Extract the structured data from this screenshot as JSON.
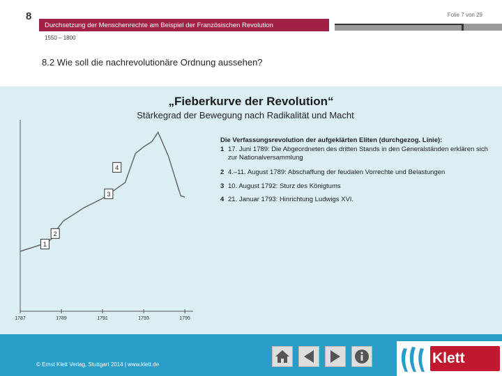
{
  "header": {
    "chapter_number": "8",
    "slide_counter": "Folie 7 von 29",
    "title": "Durchsetzung der Menschenrechte am Beispiel der Französischen Revolution",
    "period": "1550 – 1800",
    "section_heading": "8.2  Wie soll die nachrevolutionäre Ordnung aussehen?"
  },
  "slide": {
    "title": "„Fieberkurve der Revolution“",
    "subtitle": "Stärkegrad der Bewegung nach Radikalität und Macht"
  },
  "chart_data": {
    "type": "line",
    "title": "„Fieberkurve der Revolution“",
    "subtitle": "Stärkegrad der Bewegung nach Radikalität und Macht",
    "xlabel": "",
    "ylabel": "",
    "x_tick_labels": [
      "1787",
      "1789",
      "1791",
      "1793",
      "1795"
    ],
    "xlim": [
      1787,
      1795.2
    ],
    "ylim": [
      0,
      10
    ],
    "grid": false,
    "x": [
      1787.0,
      1788.0,
      1788.5,
      1788.8,
      1789.1,
      1789.5,
      1790.1,
      1791.0,
      1792.1,
      1792.6,
      1793.0,
      1793.4,
      1793.7,
      1794.2,
      1794.5,
      1794.8,
      1795.0
    ],
    "y": [
      1.0,
      1.5,
      1.9,
      2.7,
      3.3,
      3.7,
      4.3,
      5.0,
      6.2,
      8.4,
      8.9,
      9.3,
      10.0,
      8.2,
      6.7,
      5.2,
      5.1
    ],
    "markers": [
      {
        "label": "1",
        "x": 1788.2,
        "y": 1.55
      },
      {
        "label": "2",
        "x": 1788.7,
        "y": 2.35
      },
      {
        "label": "3",
        "x": 1791.3,
        "y": 5.35
      },
      {
        "label": "4",
        "x": 1791.7,
        "y": 7.35
      }
    ],
    "legend_title": "Die Verfassungsrevolution der aufgeklärten Eliten (durchgezog. Linie):",
    "legend": [
      {
        "number": "1",
        "text": "17. Juni 1789: Die Abgeordneten des dritten Stands in den Generalständen erklären sich zur Nationalversammlung"
      },
      {
        "number": "2",
        "text": "4.–11. August 1789: Abschaffung der feudalen Vorrechte und Belastungen"
      },
      {
        "number": "3",
        "text": "10. August 1792: Sturz des Königtums"
      },
      {
        "number": "4",
        "text": "21. Januar 1793: Hinrichtung Ludwigs XVI."
      }
    ]
  },
  "footer": {
    "copyright": "© Ernst Klett Verlag, Stuttgart 2014 | www.klett.de",
    "nav_buttons": [
      {
        "icon": "home-icon"
      },
      {
        "icon": "back-arrow-icon"
      },
      {
        "icon": "forward-arrow-icon"
      },
      {
        "icon": "info-icon"
      }
    ],
    "logo_text": "Klett"
  },
  "colors": {
    "header_accent": "#a21f45",
    "content_panel": "#daeef3",
    "footer": "#2a9cc8",
    "logo_red": "#c0182e"
  }
}
